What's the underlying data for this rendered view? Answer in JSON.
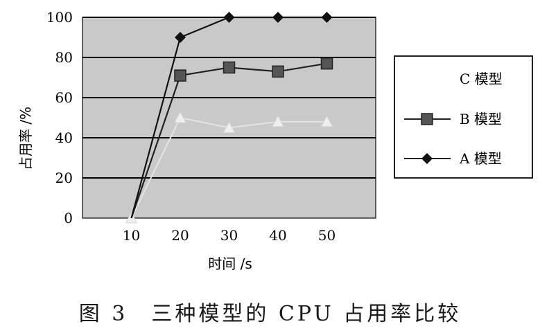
{
  "chart_data": {
    "type": "line",
    "title": "",
    "xlabel": "时间 /s",
    "ylabel": "占用率 /%",
    "x": [
      10,
      20,
      30,
      40,
      50
    ],
    "xlim": [
      0,
      60
    ],
    "ylim": [
      0,
      100
    ],
    "yticks": [
      0,
      20,
      40,
      60,
      80,
      100
    ],
    "xticks": [
      10,
      20,
      30,
      40,
      50
    ],
    "grid": "horizontal",
    "legend_position": "right",
    "series": [
      {
        "name": "C 模型",
        "values": [
          0,
          50,
          45,
          48,
          48
        ],
        "marker": "triangle",
        "color": "#e4e4e4"
      },
      {
        "name": "B 模型",
        "values": [
          0,
          71,
          75,
          73,
          77
        ],
        "marker": "square",
        "color": "#222222"
      },
      {
        "name": "A 模型",
        "values": [
          0,
          90,
          100,
          100,
          100
        ],
        "marker": "diamond",
        "color": "#111111"
      }
    ],
    "colors": {
      "plot_background": "#c9c9c9",
      "gridline": "#000000"
    }
  },
  "caption": "图 3　三种模型的 CPU 占用率比较"
}
